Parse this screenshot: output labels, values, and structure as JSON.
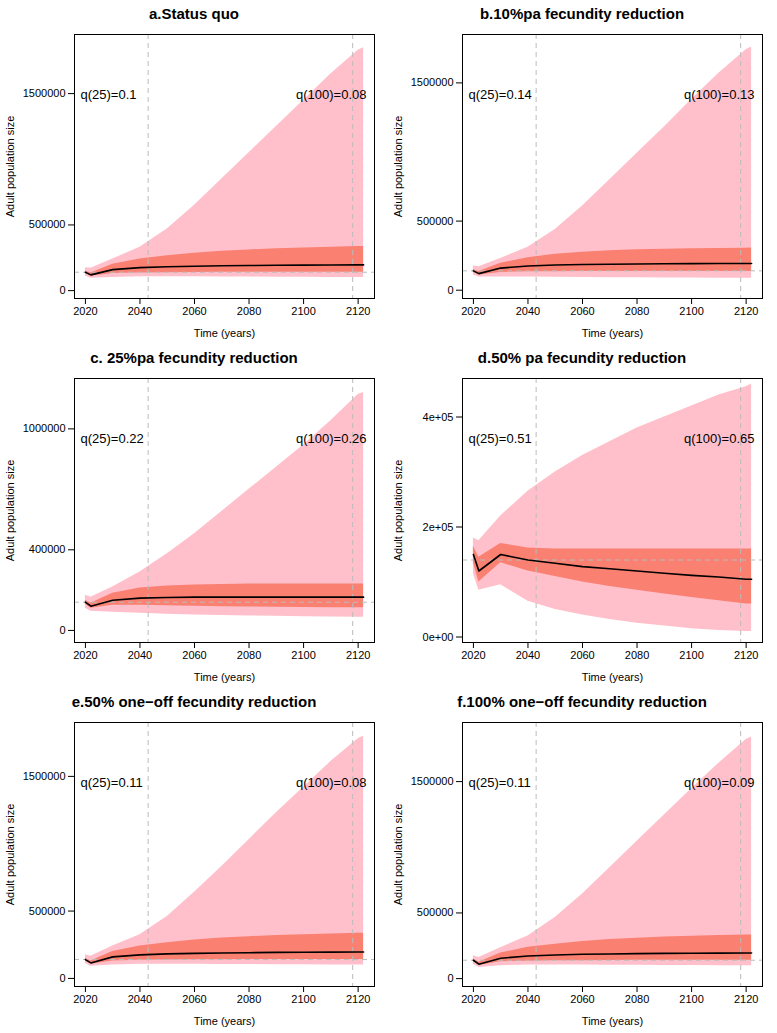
{
  "chart_data": [
    {
      "type": "line",
      "title": "a.Status quo",
      "x_label": "Time (years)",
      "y_label": "Adult population size",
      "x": [
        2020,
        2022,
        2030,
        2040,
        2050,
        2060,
        2070,
        2080,
        2090,
        2100,
        2110,
        2120,
        2122
      ],
      "median": [
        140000,
        120000,
        160000,
        175000,
        182000,
        186000,
        189000,
        191000,
        193000,
        194000,
        195000,
        196000,
        196000
      ],
      "band50": {
        "color": "#fa8072",
        "lower": [
          130000,
          110000,
          130000,
          135000,
          137000,
          138000,
          139000,
          140000,
          140000,
          140000,
          140000,
          140000,
          140000
        ],
        "upper": [
          150000,
          135000,
          200000,
          240000,
          265000,
          285000,
          300000,
          310000,
          318000,
          325000,
          330000,
          335000,
          335000
        ]
      },
      "band95": {
        "color": "#ffc0cb",
        "lower": [
          110000,
          95000,
          100000,
          105000,
          105000,
          105000,
          104000,
          103000,
          102000,
          101000,
          100000,
          100000,
          100000
        ],
        "upper": [
          175000,
          170000,
          240000,
          330000,
          470000,
          650000,
          850000,
          1050000,
          1250000,
          1450000,
          1650000,
          1830000,
          1850000
        ]
      },
      "color": "#000000",
      "reference_x": [
        2043,
        2118
      ],
      "reference_y": 140000,
      "annotations": [
        "q(25)=0.1",
        "q(100)=0.08"
      ],
      "xlim": [
        2016,
        2126
      ],
      "xticks": [
        2020,
        2040,
        2060,
        2080,
        2100,
        2120
      ],
      "ylim": [
        -60000,
        1950000
      ],
      "yticks": [
        0,
        500000,
        1500000
      ]
    },
    {
      "type": "line",
      "title": "b.10%pa fecundity reduction",
      "x_label": "Time (years)",
      "y_label": "Adult population size",
      "x": [
        2020,
        2022,
        2030,
        2040,
        2050,
        2060,
        2070,
        2080,
        2090,
        2100,
        2110,
        2120,
        2122
      ],
      "median": [
        140000,
        120000,
        160000,
        175000,
        182000,
        186000,
        188000,
        190000,
        191000,
        192000,
        193000,
        193000,
        193000
      ],
      "band50": {
        "color": "#fa8072",
        "lower": [
          130000,
          110000,
          128000,
          133000,
          134000,
          135000,
          135000,
          135000,
          135000,
          135000,
          135000,
          135000,
          135000
        ],
        "upper": [
          150000,
          135000,
          195000,
          235000,
          260000,
          275000,
          285000,
          292000,
          297000,
          300000,
          302000,
          304000,
          305000
        ]
      },
      "band95": {
        "color": "#ffc0cb",
        "lower": [
          110000,
          95000,
          95000,
          95000,
          93000,
          92000,
          91000,
          90000,
          89000,
          88000,
          87000,
          86000,
          86000
        ],
        "upper": [
          175000,
          170000,
          230000,
          310000,
          440000,
          610000,
          800000,
          990000,
          1180000,
          1380000,
          1570000,
          1740000,
          1760000
        ]
      },
      "color": "#000000",
      "reference_x": [
        2043,
        2118
      ],
      "reference_y": 140000,
      "annotations": [
        "q(25)=0.14",
        "q(100)=0.13"
      ],
      "xlim": [
        2016,
        2126
      ],
      "xticks": [
        2020,
        2040,
        2060,
        2080,
        2100,
        2120
      ],
      "ylim": [
        -60000,
        1850000
      ],
      "yticks": [
        0,
        500000,
        1500000
      ]
    },
    {
      "type": "line",
      "title": "c. 25%pa fecundity reduction",
      "x_label": "Time (years)",
      "y_label": "Adult population size",
      "x": [
        2020,
        2022,
        2030,
        2040,
        2050,
        2060,
        2070,
        2080,
        2090,
        2100,
        2110,
        2120,
        2122
      ],
      "median": [
        140000,
        120000,
        150000,
        160000,
        163000,
        165000,
        165000,
        165000,
        165000,
        165000,
        165000,
        165000,
        165000
      ],
      "band50": {
        "color": "#fa8072",
        "lower": [
          130000,
          110000,
          125000,
          125000,
          122000,
          120000,
          118000,
          116000,
          115000,
          114000,
          113000,
          112000,
          112000
        ],
        "upper": [
          150000,
          135000,
          185000,
          210000,
          220000,
          225000,
          228000,
          230000,
          230000,
          230000,
          230000,
          230000,
          230000
        ]
      },
      "band95": {
        "color": "#ffc0cb",
        "lower": [
          110000,
          95000,
          90000,
          85000,
          80000,
          77000,
          74000,
          72000,
          70000,
          68000,
          66000,
          65000,
          65000
        ],
        "upper": [
          175000,
          165000,
          215000,
          290000,
          380000,
          480000,
          590000,
          700000,
          810000,
          920000,
          1040000,
          1170000,
          1180000
        ]
      },
      "color": "#000000",
      "reference_x": [
        2043,
        2118
      ],
      "reference_y": 140000,
      "annotations": [
        "q(25)=0.22",
        "q(100)=0.26"
      ],
      "xlim": [
        2016,
        2126
      ],
      "xticks": [
        2020,
        2040,
        2060,
        2080,
        2100,
        2120
      ],
      "ylim": [
        -60000,
        1250000
      ],
      "yticks": [
        0,
        400000,
        1000000
      ]
    },
    {
      "type": "line",
      "title": "d.50% pa fecundity reduction",
      "x_label": "Time (years)",
      "y_label": "Adult population size",
      "x": [
        2020,
        2022,
        2030,
        2040,
        2050,
        2060,
        2070,
        2080,
        2090,
        2100,
        2110,
        2120,
        2122
      ],
      "median": [
        150000,
        120000,
        150000,
        140000,
        134000,
        128000,
        124000,
        120000,
        116000,
        112000,
        109000,
        105000,
        105000
      ],
      "band50": {
        "color": "#fa8072",
        "lower": [
          135000,
          100000,
          135000,
          120000,
          110000,
          100000,
          92000,
          85000,
          78000,
          72000,
          66000,
          60000,
          60000
        ],
        "upper": [
          165000,
          145000,
          170000,
          162000,
          160000,
          160000,
          160000,
          160000,
          160000,
          160000,
          160000,
          160000,
          160000
        ]
      },
      "band95": {
        "color": "#ffc0cb",
        "lower": [
          115000,
          85000,
          95000,
          65000,
          50000,
          40000,
          32000,
          25000,
          20000,
          15000,
          12000,
          10000,
          10000
        ],
        "upper": [
          180000,
          175000,
          220000,
          265000,
          300000,
          330000,
          355000,
          380000,
          400000,
          420000,
          440000,
          455000,
          460000
        ]
      },
      "color": "#000000",
      "reference_x": [
        2043,
        2118
      ],
      "reference_y": 140000,
      "annotations": [
        "q(25)=0.51",
        "q(100)=0.65"
      ],
      "xlim": [
        2016,
        2126
      ],
      "xticks": [
        2020,
        2040,
        2060,
        2080,
        2100,
        2120
      ],
      "ylim": [
        -10000,
        470000
      ],
      "yticks": [
        {
          "value": 0,
          "label": "0e+00"
        },
        {
          "value": 200000,
          "label": "2e+05"
        },
        {
          "value": 400000,
          "label": "4e+05"
        }
      ]
    },
    {
      "type": "line",
      "title": "e.50% one−off fecundity reduction",
      "x_label": "Time (years)",
      "y_label": "Adult population size",
      "x": [
        2020,
        2022,
        2030,
        2040,
        2050,
        2060,
        2070,
        2080,
        2090,
        2100,
        2110,
        2120,
        2122
      ],
      "median": [
        140000,
        115000,
        160000,
        175000,
        182000,
        186000,
        189000,
        191000,
        193000,
        194000,
        195000,
        196000,
        196000
      ],
      "band50": {
        "color": "#fa8072",
        "lower": [
          130000,
          105000,
          130000,
          135000,
          137000,
          138000,
          139000,
          140000,
          140000,
          140000,
          140000,
          140000,
          140000
        ],
        "upper": [
          150000,
          130000,
          200000,
          240000,
          265000,
          285000,
          300000,
          310000,
          318000,
          325000,
          330000,
          335000,
          335000
        ]
      },
      "band95": {
        "color": "#ffc0cb",
        "lower": [
          110000,
          90000,
          100000,
          105000,
          105000,
          105000,
          104000,
          103000,
          102000,
          101000,
          100000,
          100000,
          100000
        ],
        "upper": [
          175000,
          165000,
          240000,
          325000,
          460000,
          640000,
          830000,
          1030000,
          1230000,
          1420000,
          1610000,
          1780000,
          1800000
        ]
      },
      "color": "#000000",
      "reference_x": [
        2043,
        2118
      ],
      "reference_y": 140000,
      "annotations": [
        "q(25)=0.11",
        "q(100)=0.08"
      ],
      "xlim": [
        2016,
        2126
      ],
      "xticks": [
        2020,
        2040,
        2060,
        2080,
        2100,
        2120
      ],
      "ylim": [
        -60000,
        1900000
      ],
      "yticks": [
        0,
        500000,
        1500000
      ]
    },
    {
      "type": "line",
      "title": "f.100% one−off fecundity reduction",
      "x_label": "Time (years)",
      "y_label": "Adult population size",
      "x": [
        2020,
        2022,
        2030,
        2040,
        2050,
        2060,
        2070,
        2080,
        2090,
        2100,
        2110,
        2120,
        2122
      ],
      "median": [
        140000,
        110000,
        155000,
        172000,
        180000,
        185000,
        188000,
        190000,
        192000,
        193000,
        194000,
        195000,
        195000
      ],
      "band50": {
        "color": "#fa8072",
        "lower": [
          130000,
          100000,
          128000,
          133000,
          136000,
          137000,
          138000,
          139000,
          139000,
          139000,
          139000,
          139000,
          139000
        ],
        "upper": [
          150000,
          125000,
          195000,
          238000,
          262000,
          282000,
          297000,
          308000,
          316000,
          323000,
          328000,
          333000,
          333000
        ]
      },
      "band95": {
        "color": "#ffc0cb",
        "lower": [
          110000,
          85000,
          98000,
          103000,
          103000,
          103000,
          102000,
          101000,
          100000,
          99000,
          98000,
          98000,
          98000
        ],
        "upper": [
          175000,
          160000,
          235000,
          325000,
          465000,
          645000,
          845000,
          1045000,
          1245000,
          1445000,
          1640000,
          1820000,
          1840000
        ]
      },
      "color": "#000000",
      "reference_x": [
        2043,
        2118
      ],
      "reference_y": 140000,
      "annotations": [
        "q(25)=0.11",
        "q(100)=0.09"
      ],
      "xlim": [
        2016,
        2126
      ],
      "xticks": [
        2020,
        2040,
        2060,
        2080,
        2100,
        2120
      ],
      "ylim": [
        -60000,
        1950000
      ],
      "yticks": [
        0,
        500000,
        1500000
      ]
    }
  ]
}
